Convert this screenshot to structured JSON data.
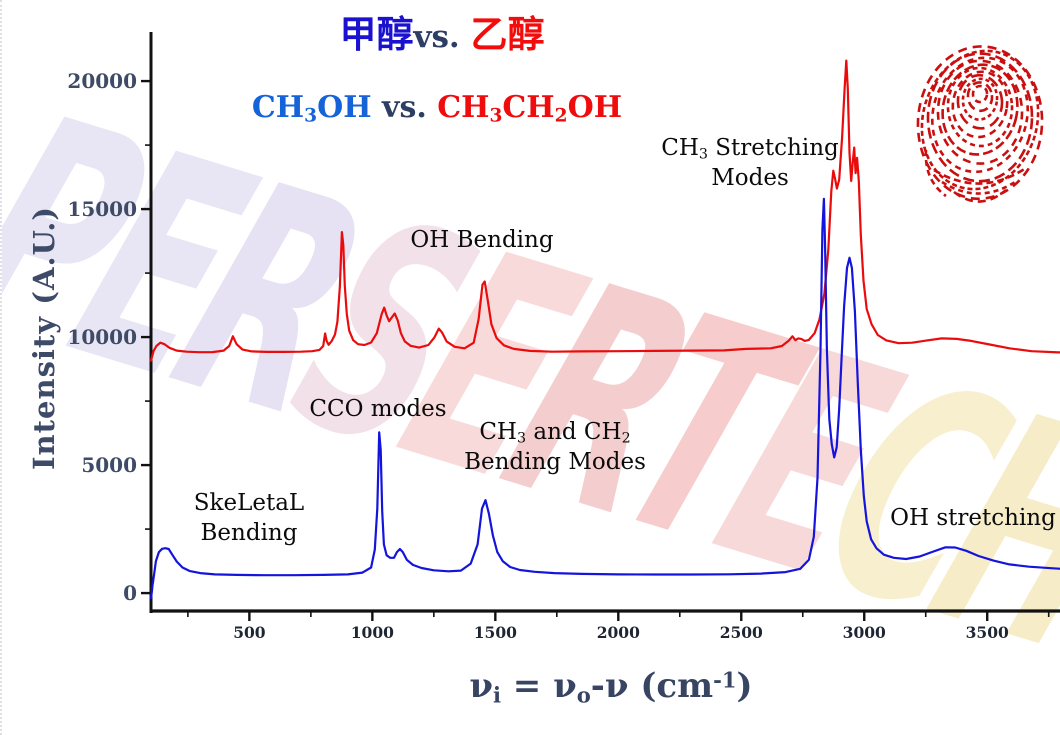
{
  "title": {
    "line1": {
      "blue": "甲醇",
      "mid": "vs. ",
      "red": "乙醇"
    },
    "line2": {
      "blue_p1": "CH",
      "blue_s1": "3",
      "blue_p2": "OH",
      "mid": " vs. ",
      "red_p1": "CH",
      "red_s1": "3",
      "red_p2": "CH",
      "red_s2": "2",
      "red_p3": "OH"
    }
  },
  "axes": {
    "ylabel": "Intensity (A.U.)",
    "xlabel": {
      "p1": "ν",
      "s1": "i",
      "p2": " = ν",
      "s2": "o",
      "p3": "-ν (cm",
      "sup1": "-1",
      "p4": ")"
    }
  },
  "annotations": {
    "skeletal": {
      "lines": [
        [
          {
            "t": "SkeLetaL"
          }
        ],
        [
          {
            "t": "Bending"
          }
        ]
      ]
    },
    "cco": {
      "lines": [
        [
          {
            "t": "CCO modes"
          }
        ]
      ]
    },
    "ohbend": {
      "lines": [
        [
          {
            "t": "OH Bending"
          }
        ]
      ]
    },
    "ch3ch2": {
      "lines": [
        [
          {
            "t": "CH"
          },
          {
            "sub": "3"
          },
          {
            "t": " and CH"
          },
          {
            "sub": "2"
          }
        ],
        [
          {
            "t": "Bending Modes"
          }
        ]
      ]
    },
    "ch3stretch": {
      "lines": [
        [
          {
            "t": "CH"
          },
          {
            "sub": "3"
          },
          {
            "t": " Stretching"
          }
        ],
        [
          {
            "t": "Modes"
          }
        ]
      ]
    },
    "ohstretch": {
      "lines": [
        [
          {
            "t": "OH stretching"
          }
        ]
      ]
    }
  },
  "colors": {
    "methanol_curve": "#1414dd",
    "ethanol_curve": "#ea0c0c",
    "axis_line": "#111111",
    "tick_label_y": "#3e4b66",
    "tick_label_x": "#1e2633",
    "title_cjk_blue": "#1b12cf",
    "title_blue": "#1463d8",
    "title_red": "#f00c0c",
    "title_mid_navy": "#2c3e63",
    "fingerprint_red": "#c90f0f"
  },
  "watermark": {
    "letters": [
      {
        "ch": "P",
        "color": "#e7e4f4"
      },
      {
        "ch": "E",
        "color": "#e7e4f4"
      },
      {
        "ch": "R",
        "color": "#e5e1f3"
      },
      {
        "ch": "S",
        "color": "#f3e0e8"
      },
      {
        "ch": "E",
        "color": "#f8d9d9"
      },
      {
        "ch": "R",
        "color": "#f4cccc"
      },
      {
        "ch": "T",
        "color": "#f6caca"
      },
      {
        "ch": "E",
        "color": "#f8d8d8"
      },
      {
        "ch": "C",
        "color": "#f8efcd"
      },
      {
        "ch": "H",
        "color": "#f6ecc6"
      }
    ]
  },
  "chart_data": {
    "type": "line",
    "title": "甲醇 vs. 乙醇 (CH3OH vs. CH3CH2OH)",
    "xlabel": "νi = νo-ν (cm-1)",
    "ylabel": "Intensity (A.U.)",
    "xlim": [
      100,
      3800
    ],
    "ylim": [
      -700,
      21800
    ],
    "x_ticks": [
      500,
      1000,
      1500,
      2000,
      2500,
      3000,
      3500
    ],
    "y_ticks": [
      0,
      5000,
      10000,
      15000,
      20000
    ],
    "x_minor_step": 250,
    "y_minor_step": 2500,
    "grid": false,
    "legend": "none",
    "series": [
      {
        "name": "CH3CH2OH (ethanol, offset trace)",
        "color": "#ea0c0c",
        "points": [
          [
            100,
            9080
          ],
          [
            110,
            9450
          ],
          [
            122,
            9650
          ],
          [
            138,
            9780
          ],
          [
            155,
            9720
          ],
          [
            175,
            9580
          ],
          [
            205,
            9470
          ],
          [
            245,
            9430
          ],
          [
            295,
            9410
          ],
          [
            350,
            9415
          ],
          [
            395,
            9470
          ],
          [
            418,
            9650
          ],
          [
            433,
            10030
          ],
          [
            448,
            9720
          ],
          [
            472,
            9510
          ],
          [
            510,
            9440
          ],
          [
            570,
            9420
          ],
          [
            640,
            9420
          ],
          [
            710,
            9430
          ],
          [
            755,
            9450
          ],
          [
            785,
            9500
          ],
          [
            800,
            9650
          ],
          [
            808,
            10140
          ],
          [
            814,
            9850
          ],
          [
            822,
            9700
          ],
          [
            835,
            9850
          ],
          [
            848,
            10100
          ],
          [
            858,
            10600
          ],
          [
            868,
            12000
          ],
          [
            876,
            14100
          ],
          [
            882,
            13600
          ],
          [
            888,
            12000
          ],
          [
            896,
            10900
          ],
          [
            906,
            10250
          ],
          [
            922,
            9880
          ],
          [
            942,
            9720
          ],
          [
            968,
            9690
          ],
          [
            995,
            9790
          ],
          [
            1018,
            10150
          ],
          [
            1038,
            10900
          ],
          [
            1048,
            11150
          ],
          [
            1058,
            10850
          ],
          [
            1068,
            10620
          ],
          [
            1080,
            10780
          ],
          [
            1091,
            10920
          ],
          [
            1103,
            10650
          ],
          [
            1116,
            10150
          ],
          [
            1132,
            9830
          ],
          [
            1155,
            9660
          ],
          [
            1190,
            9590
          ],
          [
            1228,
            9690
          ],
          [
            1252,
            9980
          ],
          [
            1270,
            10330
          ],
          [
            1284,
            10170
          ],
          [
            1302,
            9830
          ],
          [
            1335,
            9620
          ],
          [
            1375,
            9560
          ],
          [
            1412,
            9780
          ],
          [
            1432,
            10700
          ],
          [
            1448,
            12050
          ],
          [
            1457,
            12170
          ],
          [
            1468,
            11500
          ],
          [
            1484,
            10500
          ],
          [
            1505,
            9960
          ],
          [
            1535,
            9680
          ],
          [
            1575,
            9540
          ],
          [
            1640,
            9460
          ],
          [
            1730,
            9430
          ],
          [
            1850,
            9440
          ],
          [
            2000,
            9450
          ],
          [
            2150,
            9460
          ],
          [
            2300,
            9470
          ],
          [
            2430,
            9480
          ],
          [
            2520,
            9540
          ],
          [
            2620,
            9560
          ],
          [
            2665,
            9650
          ],
          [
            2692,
            9850
          ],
          [
            2708,
            10030
          ],
          [
            2720,
            9880
          ],
          [
            2732,
            9950
          ],
          [
            2744,
            9930
          ],
          [
            2758,
            9850
          ],
          [
            2775,
            9890
          ],
          [
            2798,
            10150
          ],
          [
            2818,
            10700
          ],
          [
            2838,
            11700
          ],
          [
            2854,
            13400
          ],
          [
            2866,
            15700
          ],
          [
            2874,
            16500
          ],
          [
            2881,
            16200
          ],
          [
            2889,
            15800
          ],
          [
            2898,
            16150
          ],
          [
            2910,
            17800
          ],
          [
            2920,
            19700
          ],
          [
            2927,
            20800
          ],
          [
            2933,
            19700
          ],
          [
            2940,
            17200
          ],
          [
            2947,
            16100
          ],
          [
            2954,
            16900
          ],
          [
            2959,
            17400
          ],
          [
            2965,
            16400
          ],
          [
            2971,
            17000
          ],
          [
            2978,
            16100
          ],
          [
            2986,
            14000
          ],
          [
            2997,
            12200
          ],
          [
            3010,
            11100
          ],
          [
            3030,
            10500
          ],
          [
            3055,
            10080
          ],
          [
            3090,
            9870
          ],
          [
            3140,
            9760
          ],
          [
            3195,
            9780
          ],
          [
            3255,
            9870
          ],
          [
            3315,
            9950
          ],
          [
            3375,
            9930
          ],
          [
            3435,
            9850
          ],
          [
            3510,
            9710
          ],
          [
            3590,
            9560
          ],
          [
            3680,
            9450
          ],
          [
            3790,
            9400
          ],
          [
            3800,
            9400
          ]
        ]
      },
      {
        "name": "CH3OH (methanol)",
        "color": "#1414dd",
        "points": [
          [
            100,
            -200
          ],
          [
            104,
            100
          ],
          [
            106,
            300
          ],
          [
            112,
            700
          ],
          [
            120,
            1250
          ],
          [
            132,
            1600
          ],
          [
            145,
            1730
          ],
          [
            158,
            1755
          ],
          [
            172,
            1720
          ],
          [
            188,
            1480
          ],
          [
            205,
            1230
          ],
          [
            228,
            1000
          ],
          [
            258,
            860
          ],
          [
            300,
            780
          ],
          [
            360,
            730
          ],
          [
            450,
            710
          ],
          [
            560,
            700
          ],
          [
            680,
            700
          ],
          [
            800,
            710
          ],
          [
            900,
            730
          ],
          [
            960,
            800
          ],
          [
            995,
            1000
          ],
          [
            1010,
            1700
          ],
          [
            1020,
            3300
          ],
          [
            1028,
            6280
          ],
          [
            1034,
            5600
          ],
          [
            1040,
            3200
          ],
          [
            1047,
            1900
          ],
          [
            1058,
            1480
          ],
          [
            1072,
            1380
          ],
          [
            1088,
            1380
          ],
          [
            1100,
            1600
          ],
          [
            1112,
            1720
          ],
          [
            1124,
            1600
          ],
          [
            1140,
            1300
          ],
          [
            1165,
            1100
          ],
          [
            1200,
            980
          ],
          [
            1250,
            890
          ],
          [
            1310,
            850
          ],
          [
            1360,
            880
          ],
          [
            1400,
            1150
          ],
          [
            1428,
            1900
          ],
          [
            1446,
            3300
          ],
          [
            1460,
            3630
          ],
          [
            1474,
            3100
          ],
          [
            1490,
            2250
          ],
          [
            1508,
            1600
          ],
          [
            1530,
            1250
          ],
          [
            1560,
            1020
          ],
          [
            1600,
            900
          ],
          [
            1660,
            830
          ],
          [
            1740,
            780
          ],
          [
            1850,
            750
          ],
          [
            2000,
            730
          ],
          [
            2150,
            725
          ],
          [
            2300,
            725
          ],
          [
            2450,
            735
          ],
          [
            2580,
            760
          ],
          [
            2680,
            820
          ],
          [
            2740,
            950
          ],
          [
            2775,
            1300
          ],
          [
            2795,
            2200
          ],
          [
            2810,
            4500
          ],
          [
            2822,
            9500
          ],
          [
            2830,
            14200
          ],
          [
            2836,
            15400
          ],
          [
            2841,
            13500
          ],
          [
            2848,
            9500
          ],
          [
            2858,
            6800
          ],
          [
            2868,
            5800
          ],
          [
            2878,
            5300
          ],
          [
            2888,
            5700
          ],
          [
            2898,
            7200
          ],
          [
            2908,
            9200
          ],
          [
            2918,
            11200
          ],
          [
            2930,
            12700
          ],
          [
            2940,
            13100
          ],
          [
            2950,
            12700
          ],
          [
            2962,
            11000
          ],
          [
            2974,
            8200
          ],
          [
            2986,
            5600
          ],
          [
            2998,
            3800
          ],
          [
            3010,
            2800
          ],
          [
            3028,
            2100
          ],
          [
            3050,
            1750
          ],
          [
            3080,
            1500
          ],
          [
            3120,
            1380
          ],
          [
            3170,
            1330
          ],
          [
            3225,
            1430
          ],
          [
            3280,
            1620
          ],
          [
            3330,
            1790
          ],
          [
            3370,
            1780
          ],
          [
            3415,
            1650
          ],
          [
            3465,
            1450
          ],
          [
            3525,
            1270
          ],
          [
            3590,
            1120
          ],
          [
            3670,
            1030
          ],
          [
            3760,
            970
          ],
          [
            3800,
            950
          ]
        ]
      }
    ]
  }
}
